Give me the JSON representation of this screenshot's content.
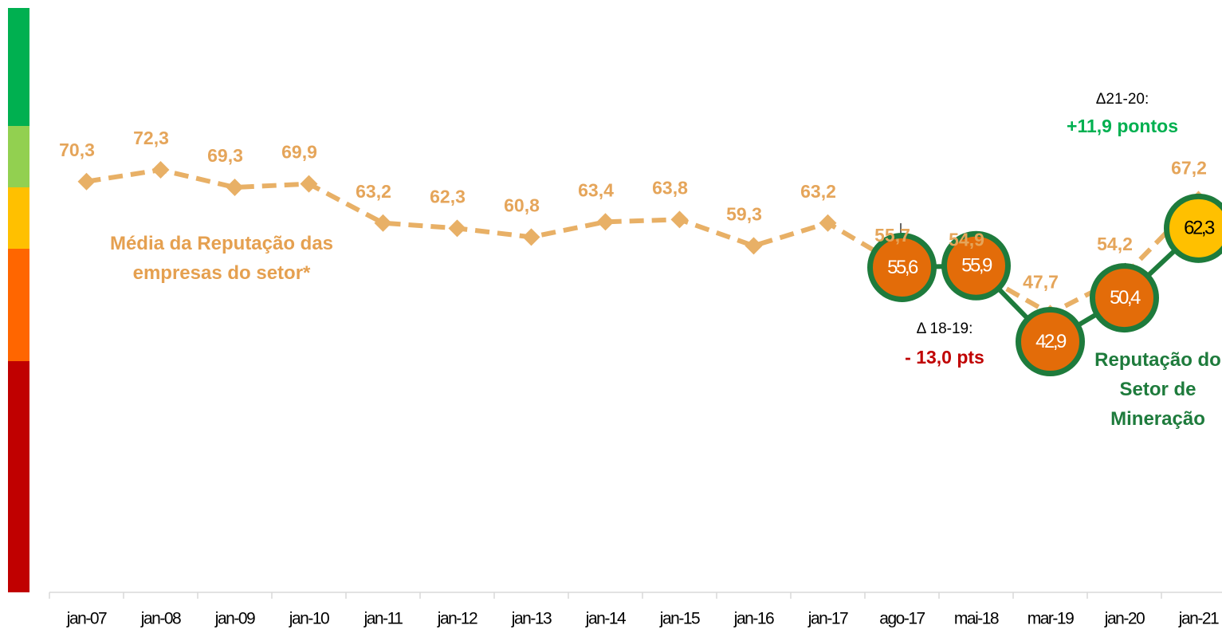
{
  "chart_data": {
    "type": "line",
    "categories": [
      "jan-07",
      "jan-08",
      "jan-09",
      "jan-10",
      "jan-11",
      "jan-12",
      "jan-13",
      "jan-14",
      "jan-15",
      "jan-16",
      "jan-17",
      "ago-17",
      "mai-18",
      "mar-19",
      "jan-20",
      "jan-21"
    ],
    "ylim": [
      0,
      100
    ],
    "series": [
      {
        "name": "Média da Reputação das empresas do setor*",
        "color": "#e8b066",
        "values": [
          70.3,
          72.3,
          69.3,
          69.9,
          63.2,
          62.3,
          60.8,
          63.4,
          63.8,
          59.3,
          63.2,
          55.7,
          54.9,
          47.7,
          54.2,
          67.2
        ],
        "value_labels": [
          "70,3",
          "72,3",
          "69,3",
          "69,9",
          "63,2",
          "62,3",
          "60,8",
          "63,4",
          "63,8",
          "59,3",
          "63,2",
          "55,7",
          "54,9",
          "47,7",
          "54,2",
          "67,2"
        ]
      },
      {
        "name": "Reputação do Setor de Mineração",
        "color": "#1e7b3c",
        "values": [
          null,
          null,
          null,
          null,
          null,
          null,
          null,
          null,
          null,
          null,
          null,
          55.6,
          55.9,
          42.9,
          50.4,
          62.3
        ],
        "value_labels": [
          null,
          null,
          null,
          null,
          null,
          null,
          null,
          null,
          null,
          null,
          null,
          "55,6",
          "55,9",
          "42,9",
          "50,4",
          "62,3"
        ],
        "point_colors": [
          null,
          null,
          null,
          null,
          null,
          null,
          null,
          null,
          null,
          null,
          null,
          "#e36c09",
          "#e36c09",
          "#e36c09",
          "#e36c09",
          "#ffc000"
        ]
      }
    ],
    "annotations": [
      {
        "label": "Δ 18-19:",
        "value": "- 13,0 pts",
        "color": "#c00000"
      },
      {
        "label": "Δ21-20:",
        "value": "+11,9 pontos",
        "color": "#00b050"
      }
    ]
  }
}
